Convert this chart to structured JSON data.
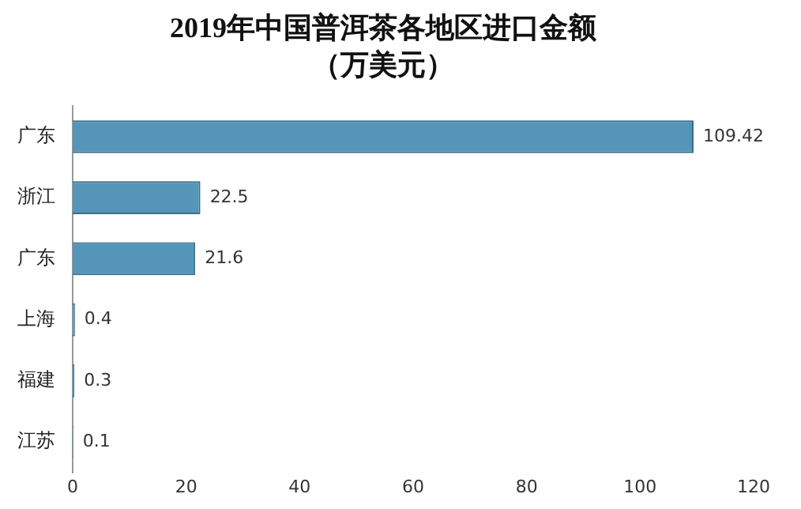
{
  "chart_data": {
    "type": "bar",
    "orientation": "horizontal",
    "title": "2019年中国普洱茶各地区进口金额",
    "subtitle": "（万美元）",
    "categories": [
      "广东",
      "浙江",
      "广东",
      "上海",
      "福建",
      "江苏"
    ],
    "values": [
      109.42,
      22.5,
      21.6,
      0.4,
      0.3,
      0.1
    ],
    "color": "#5495b8",
    "xlim": [
      0,
      120
    ],
    "xticks": [
      0,
      20,
      40,
      60,
      80,
      100,
      120
    ],
    "grid": false,
    "legend": false,
    "data_labels": true
  }
}
